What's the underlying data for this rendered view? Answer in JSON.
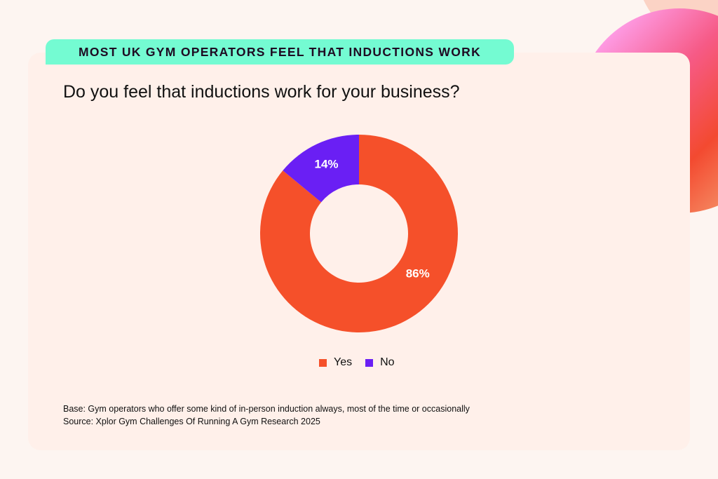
{
  "header": {
    "tag": "MOST UK GYM OPERATORS FEEL THAT INDUCTIONS WORK",
    "question": "Do you feel that inductions work for your business?"
  },
  "colors": {
    "tag_bg": "#74fbd2",
    "yes": "#f5502a",
    "no": "#6a1ff4",
    "card": "#fff0ea"
  },
  "chart_data": {
    "type": "pie",
    "donut": true,
    "title": "Do you feel that inductions work for your business?",
    "categories": [
      "Yes",
      "No"
    ],
    "values": [
      86,
      14
    ],
    "data_labels": [
      "86%",
      "14%"
    ],
    "colors": [
      "#f5502a",
      "#6a1ff4"
    ],
    "legend_position": "bottom"
  },
  "legend": [
    {
      "label": "Yes"
    },
    {
      "label": "No"
    }
  ],
  "footer": {
    "base": "Base: Gym operators who offer some kind of in-person induction always, most of the time or occasionally",
    "source": "Source: Xplor Gym Challenges Of Running A Gym Research 2025"
  }
}
